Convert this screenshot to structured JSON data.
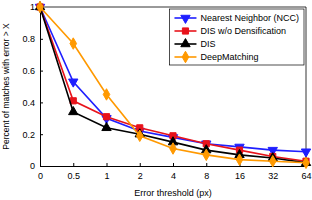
{
  "chart_data": {
    "type": "line",
    "x_label": "Error threshold (px)",
    "y_label": "Percent of matches with error > X",
    "categories": [
      "0",
      "0.5",
      "1",
      "2",
      "4",
      "8",
      "16",
      "32",
      "64"
    ],
    "series": [
      {
        "name": "Nearest Neighbor (NCC)",
        "color": "#1f1fff",
        "marker": "triangle-down",
        "values": [
          1,
          0.53,
          0.3,
          0.22,
          0.18,
          0.14,
          0.12,
          0.1,
          0.09
        ]
      },
      {
        "name": "DIS w/o Densification",
        "color": "#e8131b",
        "marker": "square",
        "values": [
          1,
          0.41,
          0.31,
          0.24,
          0.19,
          0.14,
          0.1,
          0.06,
          0.03
        ]
      },
      {
        "name": "DIS",
        "color": "#000000",
        "marker": "triangle",
        "values": [
          1,
          0.34,
          0.24,
          0.2,
          0.15,
          0.1,
          0.07,
          0.05,
          0.02
        ]
      },
      {
        "name": "DeepMatching",
        "color": "#ff9900",
        "marker": "diamond",
        "values": [
          1,
          0.77,
          0.45,
          0.19,
          0.11,
          0.07,
          0.04,
          0.03,
          0.02
        ]
      }
    ],
    "ylim": [
      0,
      1
    ],
    "yticks": [
      0,
      0.2,
      0.4,
      0.6,
      0.8,
      1
    ],
    "grid": false,
    "legend": "upper right"
  }
}
